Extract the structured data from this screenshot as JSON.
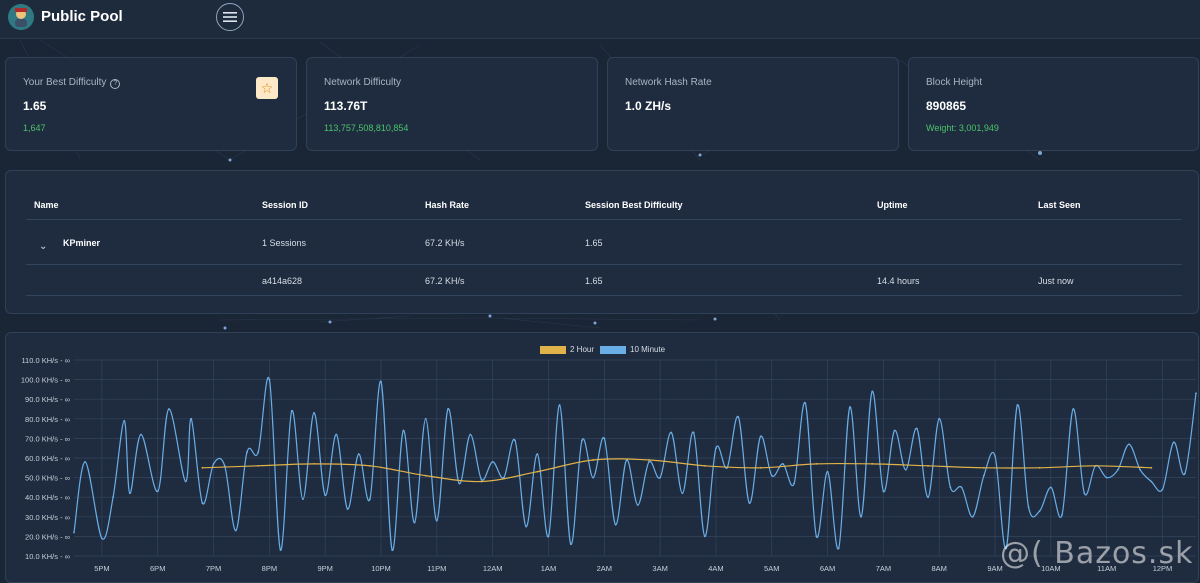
{
  "app": {
    "title": "Public Pool"
  },
  "cards": [
    {
      "label": "Your Best Difficulty",
      "value": "1.65",
      "sub": "1,647"
    },
    {
      "label": "Network Difficulty",
      "value": "113.76T",
      "sub": "113,757,508,810,854"
    },
    {
      "label": "Network Hash Rate",
      "value": "1.0 ZH/s",
      "sub": ""
    },
    {
      "label": "Block Height",
      "value": "890865",
      "sub": "Weight: 3,001,949"
    }
  ],
  "table": {
    "headers": {
      "name": "Name",
      "session": "Session ID",
      "hash": "Hash Rate",
      "best": "Session Best Difficulty",
      "uptime": "Uptime",
      "seen": "Last Seen"
    },
    "worker": {
      "name": "KPminer",
      "session": "1 Sessions",
      "hash": "67.2 KH/s",
      "best": "1.65",
      "uptime": "",
      "seen": ""
    },
    "session": {
      "name": "",
      "session": "a414a628",
      "hash": "67.2 KH/s",
      "best": "1.65",
      "uptime": "14.4 hours",
      "seen": "Just now"
    }
  },
  "colors": {
    "accent_green": "#4cc26b",
    "series_2h": "#e0b24a",
    "series_10m": "#6aaee8",
    "star": "#e08a00"
  },
  "watermark": "@( Bazos.sk",
  "chart_data": {
    "type": "line",
    "title": "",
    "legend_position": "top",
    "x_ticks": [
      "5PM",
      "6PM",
      "7PM",
      "8PM",
      "9PM",
      "10PM",
      "11PM",
      "12AM",
      "1AM",
      "2AM",
      "3AM",
      "4AM",
      "5AM",
      "6AM",
      "7AM",
      "8AM",
      "9AM",
      "10AM",
      "11AM",
      "12PM"
    ],
    "y_ticks": [
      "10.0 KH/s - ∞",
      "20.0 KH/s - ∞",
      "30.0 KH/s - ∞",
      "40.0 KH/s - ∞",
      "50.0 KH/s - ∞",
      "60.0 KH/s - ∞",
      "70.0 KH/s - ∞",
      "80.0 KH/s - ∞",
      "90.0 KH/s - ∞",
      "100.0 KH/s - ∞",
      "110.0 KH/s - ∞"
    ],
    "ylim": [
      10,
      110
    ],
    "xlim": [
      16.5,
      12.6
    ],
    "series": [
      {
        "name": "2 Hour",
        "color": "#e0b24a",
        "x": [
          18.8,
          19.8,
          20.8,
          21.8,
          22.8,
          23.8,
          24.8,
          25.8,
          26.8,
          27.8,
          28.8,
          29.8,
          30.8,
          31.8,
          32.8,
          33.8,
          34.8,
          35.8
        ],
        "y": [
          55,
          56,
          57,
          56,
          51,
          48,
          53,
          59,
          59,
          56,
          55,
          57,
          57,
          56,
          55,
          55,
          56,
          55
        ]
      },
      {
        "name": "10 Minute",
        "color": "#6aaee8",
        "x": [
          16.5,
          16.7,
          17.0,
          17.2,
          17.4,
          17.5,
          17.7,
          18.0,
          18.2,
          18.5,
          18.6,
          18.8,
          19.0,
          19.2,
          19.4,
          19.6,
          19.8,
          20.0,
          20.2,
          20.4,
          20.6,
          20.8,
          21.0,
          21.2,
          21.4,
          21.6,
          21.8,
          22.0,
          22.2,
          22.4,
          22.6,
          22.8,
          23.0,
          23.2,
          23.4,
          23.6,
          23.8,
          24.0,
          24.2,
          24.4,
          24.6,
          24.8,
          25.0,
          25.2,
          25.4,
          25.6,
          25.8,
          26.0,
          26.2,
          26.4,
          26.6,
          26.8,
          27.0,
          27.2,
          27.4,
          27.6,
          27.8,
          28.0,
          28.2,
          28.4,
          28.6,
          28.8,
          29.0,
          29.2,
          29.4,
          29.6,
          29.8,
          30.0,
          30.2,
          30.4,
          30.6,
          30.8,
          31.0,
          31.2,
          31.4,
          31.6,
          31.8,
          32.0,
          32.2,
          32.4,
          32.6,
          32.8,
          33.0,
          33.2,
          33.4,
          33.6,
          33.8,
          34.0,
          34.2,
          34.4,
          34.6,
          34.8,
          35.0,
          35.2,
          35.4,
          35.6,
          35.8,
          36.0,
          36.2,
          36.4,
          36.6
        ],
        "y": [
          22,
          58,
          19,
          40,
          79,
          42,
          72,
          43,
          85,
          48,
          80,
          37,
          57,
          56,
          23,
          63,
          63,
          100,
          13,
          84,
          39,
          83,
          41,
          72,
          34,
          62,
          39,
          99,
          13,
          74,
          27,
          80,
          28,
          85,
          47,
          72,
          49,
          58,
          50,
          69,
          25,
          62,
          20,
          87,
          16,
          69,
          50,
          70,
          26,
          59,
          36,
          58,
          50,
          73,
          42,
          73,
          20,
          65,
          55,
          81,
          37,
          71,
          51,
          57,
          47,
          88,
          20,
          53,
          14,
          86,
          30,
          94,
          43,
          74,
          54,
          75,
          40,
          80,
          45,
          45,
          30,
          51,
          61,
          14,
          87,
          35,
          33,
          45,
          31,
          85,
          42,
          56,
          50,
          54,
          67,
          54,
          48,
          44,
          68,
          52,
          93
        ]
      }
    ]
  }
}
